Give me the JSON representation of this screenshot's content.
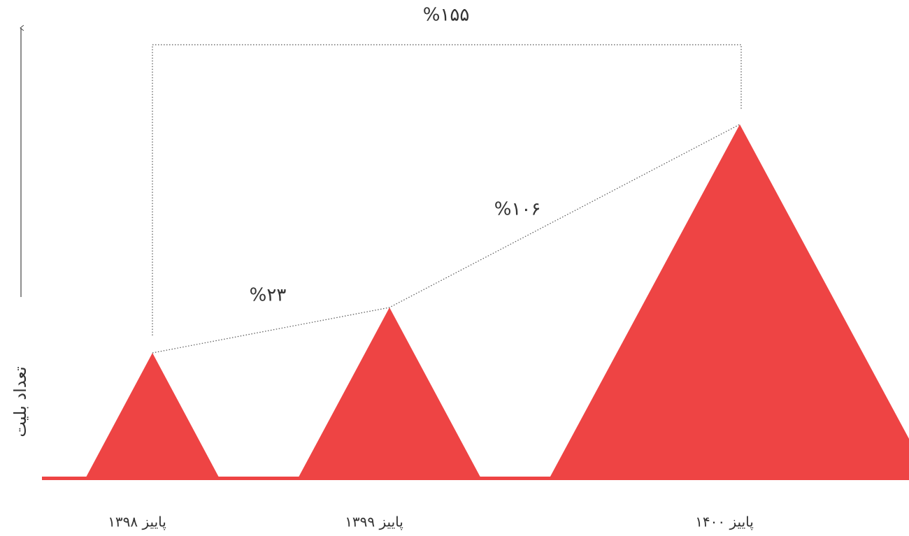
{
  "chart_data": {
    "type": "triangle",
    "y_label": "تعداد بلیت",
    "categories": [
      "پاییز ۱۳۹۸",
      "پاییز ۱۳۹۹",
      "پاییز ۱۴۰۰"
    ],
    "values": [
      180,
      245,
      507
    ],
    "ylim": [
      0,
      645
    ],
    "color": "#ee4444",
    "annotations": [
      "%۲۳",
      "%۱۰۶",
      "%۱۵۵"
    ]
  }
}
